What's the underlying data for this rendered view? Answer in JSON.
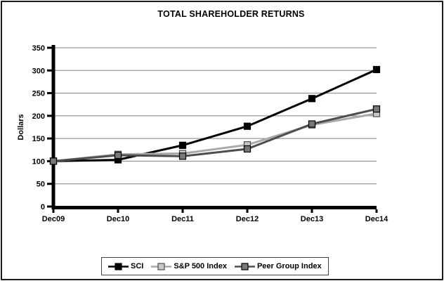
{
  "window": {
    "background": "#ffffff",
    "border_color": "#1c1c1c"
  },
  "chart_data": {
    "type": "line",
    "title": "TOTAL SHAREHOLDER RETURNS",
    "xlabel": "",
    "ylabel": "Dollars",
    "categories": [
      "Dec09",
      "Dec10",
      "Dec11",
      "Dec12",
      "Dec13",
      "Dec14"
    ],
    "series": [
      {
        "name": "SCI",
        "values": [
          100,
          103,
          135,
          177,
          238,
          302
        ],
        "line_color": "#000000",
        "marker_fill": "#000000",
        "marker_stroke": "#000000"
      },
      {
        "name": "S&P 500 Index",
        "values": [
          100,
          115,
          117,
          136,
          180,
          205
        ],
        "line_color": "#a9a9a9",
        "marker_fill": "#c8c8c8",
        "marker_stroke": "#4d4d4d"
      },
      {
        "name": "Peer Group Index",
        "values": [
          100,
          113,
          111,
          127,
          182,
          215
        ],
        "line_color": "#4d4d4d",
        "marker_fill": "#787878",
        "marker_stroke": "#000000"
      }
    ],
    "ylim": [
      0,
      350
    ],
    "ytick_step": 50,
    "ytick_labels": [
      "0",
      "50",
      "100",
      "150",
      "200",
      "250",
      "300",
      "350"
    ],
    "grid": true,
    "gridline_color": "#808080",
    "axis_color": "#000000",
    "legend_position": "bottom",
    "marker_shape": "square"
  }
}
